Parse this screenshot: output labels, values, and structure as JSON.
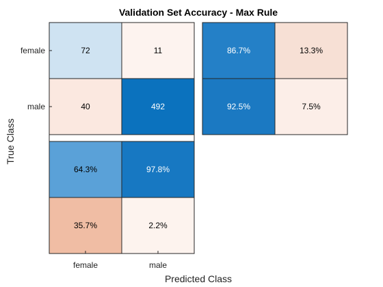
{
  "chart_data": {
    "type": "heatmap",
    "title": "Validation Set Accuracy - Max Rule",
    "xlabel": "Predicted Class",
    "ylabel": "True Class",
    "classes": [
      "female",
      "male"
    ],
    "confusion_matrix": {
      "values": [
        [
          72,
          11
        ],
        [
          40,
          492
        ]
      ],
      "colors": [
        [
          "#cfe3f2",
          "#fdf3ef"
        ],
        [
          "#fbe8e0",
          "#0b72be"
        ]
      ],
      "text_colors": [
        [
          "#000000",
          "#000000"
        ],
        [
          "#000000",
          "#ffffff"
        ]
      ]
    },
    "row_summary": {
      "labels": [
        [
          "86.7%",
          "13.3%"
        ],
        [
          "92.5%",
          "7.5%"
        ]
      ],
      "colors": [
        [
          "#2480c7",
          "#f7e0d5"
        ],
        [
          "#1b79c2",
          "#fceee8"
        ]
      ],
      "text_colors": [
        [
          "#ffffff",
          "#000000"
        ],
        [
          "#ffffff",
          "#000000"
        ]
      ]
    },
    "column_summary": {
      "labels": [
        [
          "64.3%",
          "97.8%"
        ],
        [
          "35.7%",
          "2.2%"
        ]
      ],
      "colors": [
        [
          "#5aa1d8",
          "#1778c2"
        ],
        [
          "#f0bda4",
          "#fdf3ee"
        ]
      ],
      "text_colors": [
        [
          "#000000",
          "#ffffff"
        ],
        [
          "#000000",
          "#000000"
        ]
      ]
    }
  }
}
